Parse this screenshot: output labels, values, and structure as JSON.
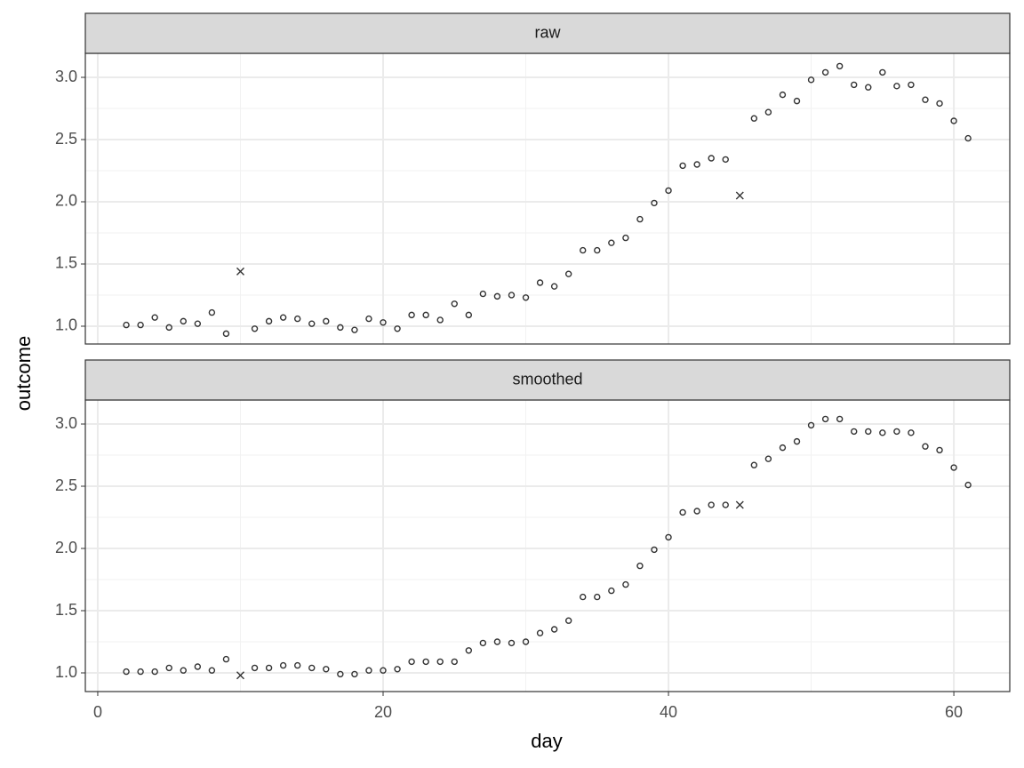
{
  "chart_data": [
    {
      "type": "scatter",
      "strip": "raw",
      "ylabel": "outcome",
      "x": [
        2,
        3,
        4,
        5,
        6,
        7,
        8,
        9,
        10,
        11,
        12,
        13,
        14,
        15,
        16,
        17,
        18,
        19,
        20,
        21,
        22,
        23,
        24,
        25,
        26,
        27,
        28,
        29,
        30,
        31,
        32,
        33,
        34,
        35,
        36,
        37,
        38,
        39,
        40,
        41,
        42,
        43,
        44,
        45,
        46,
        47,
        48,
        49,
        50,
        51,
        52,
        53,
        54,
        55,
        56,
        57,
        58,
        59,
        60,
        61
      ],
      "values": [
        1.01,
        1.01,
        1.07,
        0.99,
        1.04,
        1.02,
        1.11,
        0.94,
        1.44,
        0.98,
        1.04,
        1.07,
        1.06,
        1.02,
        1.04,
        0.99,
        0.97,
        1.06,
        1.03,
        0.98,
        1.09,
        1.09,
        1.05,
        1.18,
        1.09,
        1.26,
        1.24,
        1.25,
        1.23,
        1.35,
        1.32,
        1.42,
        1.61,
        1.61,
        1.67,
        1.71,
        1.86,
        1.99,
        2.09,
        2.29,
        2.3,
        2.35,
        2.34,
        2.05,
        2.67,
        2.72,
        2.86,
        2.81,
        2.98,
        3.04,
        3.09,
        2.94,
        2.92,
        3.04,
        2.93,
        2.94,
        2.82,
        2.79,
        2.65,
        2.51
      ],
      "shapes": [
        "circle",
        "circle",
        "circle",
        "circle",
        "circle",
        "circle",
        "circle",
        "circle",
        "cross",
        "circle",
        "circle",
        "circle",
        "circle",
        "circle",
        "circle",
        "circle",
        "circle",
        "circle",
        "circle",
        "circle",
        "circle",
        "circle",
        "circle",
        "circle",
        "circle",
        "circle",
        "circle",
        "circle",
        "circle",
        "circle",
        "circle",
        "circle",
        "circle",
        "circle",
        "circle",
        "circle",
        "circle",
        "circle",
        "circle",
        "circle",
        "circle",
        "circle",
        "circle",
        "cross",
        "circle",
        "circle",
        "circle",
        "circle",
        "circle",
        "circle",
        "circle",
        "circle",
        "circle",
        "circle",
        "circle",
        "circle",
        "circle",
        "circle",
        "circle",
        "circle"
      ],
      "color": "#333333",
      "xlim": [
        -0.87,
        63.92
      ],
      "ylim": [
        0.857,
        3.193
      ],
      "xticks": [
        0,
        20,
        40,
        60
      ],
      "yticks": [
        {
          "value": 1,
          "label": "1.0"
        },
        1.5,
        {
          "value": 2,
          "label": "2.0"
        },
        2.5,
        {
          "value": 3,
          "label": "3.0"
        }
      ],
      "grid": true
    },
    {
      "type": "scatter",
      "strip": "smoothed",
      "xlabel": "day",
      "x": [
        2,
        3,
        4,
        5,
        6,
        7,
        8,
        9,
        10,
        11,
        12,
        13,
        14,
        15,
        16,
        17,
        18,
        19,
        20,
        21,
        22,
        23,
        24,
        25,
        26,
        27,
        28,
        29,
        30,
        31,
        32,
        33,
        34,
        35,
        36,
        37,
        38,
        39,
        40,
        41,
        42,
        43,
        44,
        45,
        46,
        47,
        48,
        49,
        50,
        51,
        52,
        53,
        54,
        55,
        56,
        57,
        58,
        59,
        60,
        61
      ],
      "values": [
        1.01,
        1.01,
        1.01,
        1.04,
        1.02,
        1.05,
        1.02,
        1.11,
        0.98,
        1.04,
        1.04,
        1.06,
        1.06,
        1.04,
        1.03,
        0.99,
        0.99,
        1.02,
        1.02,
        1.03,
        1.09,
        1.09,
        1.09,
        1.09,
        1.18,
        1.24,
        1.25,
        1.24,
        1.25,
        1.32,
        1.35,
        1.42,
        1.61,
        1.61,
        1.66,
        1.71,
        1.86,
        1.99,
        2.09,
        2.29,
        2.3,
        2.35,
        2.35,
        2.35,
        2.67,
        2.72,
        2.81,
        2.86,
        2.99,
        3.04,
        3.04,
        2.94,
        2.94,
        2.93,
        2.94,
        2.93,
        2.82,
        2.79,
        2.65,
        2.51
      ],
      "shapes": [
        "circle",
        "circle",
        "circle",
        "circle",
        "circle",
        "circle",
        "circle",
        "circle",
        "cross",
        "circle",
        "circle",
        "circle",
        "circle",
        "circle",
        "circle",
        "circle",
        "circle",
        "circle",
        "circle",
        "circle",
        "circle",
        "circle",
        "circle",
        "circle",
        "circle",
        "circle",
        "circle",
        "circle",
        "circle",
        "circle",
        "circle",
        "circle",
        "circle",
        "circle",
        "circle",
        "circle",
        "circle",
        "circle",
        "circle",
        "circle",
        "circle",
        "circle",
        "circle",
        "cross",
        "circle",
        "circle",
        "circle",
        "circle",
        "circle",
        "circle",
        "circle",
        "circle",
        "circle",
        "circle",
        "circle",
        "circle",
        "circle",
        "circle",
        "circle",
        "circle"
      ],
      "color": "#333333",
      "xlim": [
        -0.87,
        63.92
      ],
      "ylim": [
        0.85,
        3.193
      ],
      "xticks": [
        0,
        20,
        40,
        60
      ],
      "yticks": [
        {
          "value": 1,
          "label": "1.0"
        },
        1.5,
        {
          "value": 2,
          "label": "2.0"
        },
        2.5,
        {
          "value": 3,
          "label": "3.0"
        }
      ],
      "grid": true
    }
  ]
}
